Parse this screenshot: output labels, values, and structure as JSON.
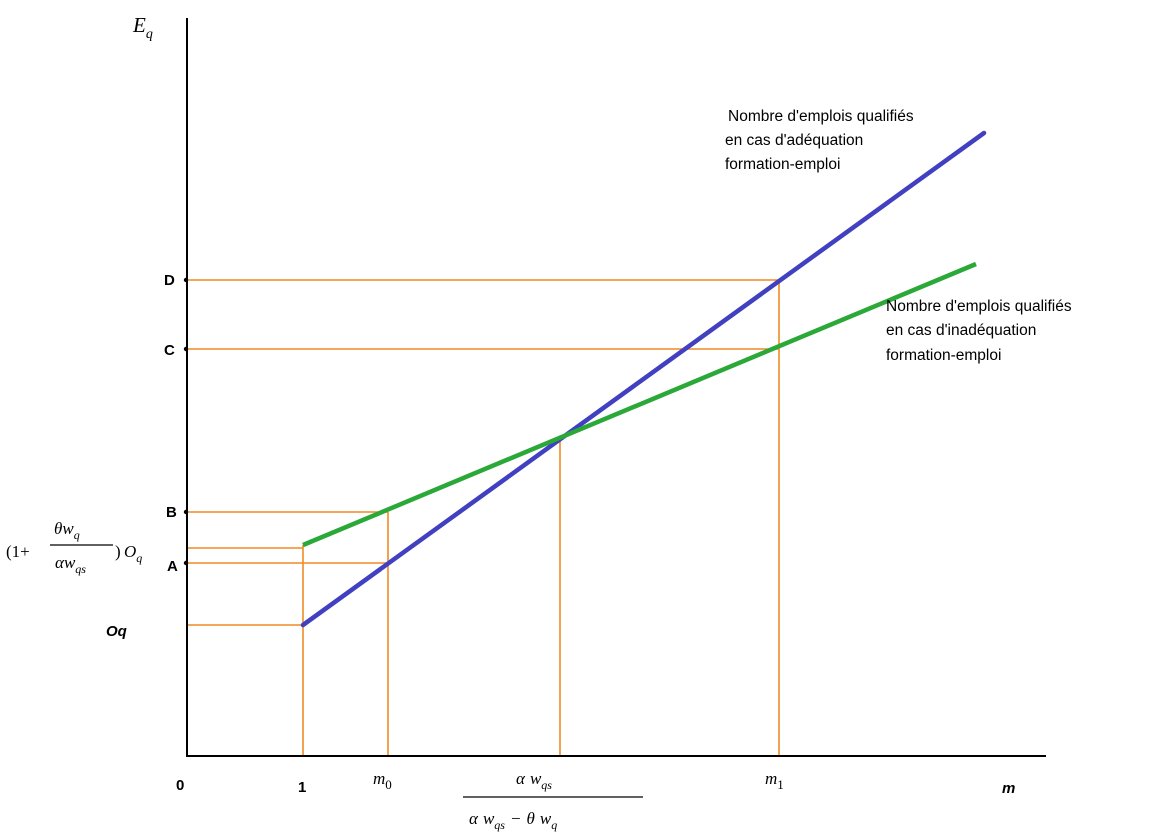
{
  "axes": {
    "y_label_main": "E",
    "y_label_sub": "q",
    "x_label": "m",
    "origin": "0"
  },
  "y_labels": {
    "D": "D",
    "C": "C",
    "B": "B",
    "A": "A",
    "Oq": "Oq"
  },
  "y_formula": {
    "open": "(1+",
    "num_theta": "θ",
    "num_w": "w",
    "num_sub": "q",
    "den_alpha": "α",
    "den_w": "w",
    "den_sub": "qs",
    "close": ")",
    "O": "O",
    "O_sub": "q"
  },
  "x_labels": {
    "one": "1",
    "m0_main": "m",
    "m0_sub": "0",
    "m1_main": "m",
    "m1_sub": "1"
  },
  "x_formula": {
    "num_alpha": "α",
    "num_w": "w",
    "num_sub": "qs",
    "den_alpha": "α",
    "den_w": "w",
    "den_sub": "qs",
    "den_minus": "−",
    "den_theta": "θ",
    "den_w2": "w",
    "den_sub2": "q"
  },
  "annotations": {
    "adequation": [
      "Nombre d'emplois qualifiés",
      "en cas d'adéquation",
      "formation-emploi"
    ],
    "inadequation": [
      "Nombre d'emplois qualifiés",
      "en cas d'inadéquation",
      "formation-emploi"
    ]
  },
  "colors": {
    "adequation_line": "#4040c0",
    "inadequation_line": "#2aa838",
    "guide_lines": "#f08a24",
    "axes": "#000000"
  }
}
